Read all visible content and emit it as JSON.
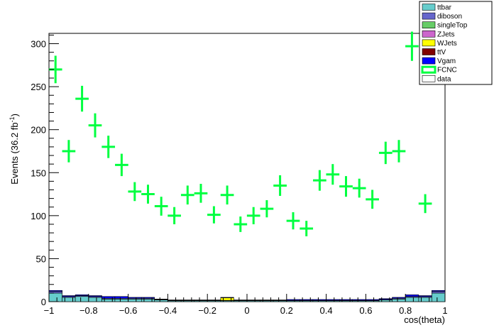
{
  "chart_data": {
    "type": "bar",
    "xlabel": "cos(theta)",
    "ylabel": "Events (36.2 fb",
    "ylabel_sup": "-1",
    "ylabel_end": ")",
    "xlim": [
      -1,
      1
    ],
    "ylim": [
      0,
      312
    ],
    "grid": false,
    "legend_position": "top-right",
    "xticks": [
      {
        "value": -1,
        "label": "−1"
      },
      {
        "value": -0.8,
        "label": "−0.8"
      },
      {
        "value": -0.6,
        "label": "−0.6"
      },
      {
        "value": -0.4,
        "label": "−0.4"
      },
      {
        "value": -0.2,
        "label": "−0.2"
      },
      {
        "value": 0,
        "label": "0"
      },
      {
        "value": 0.2,
        "label": "0.2"
      },
      {
        "value": 0.4,
        "label": "0.4"
      },
      {
        "value": 0.6,
        "label": "0.6"
      },
      {
        "value": 0.8,
        "label": "0.8"
      },
      {
        "value": 1,
        "label": "1"
      }
    ],
    "yticks": [
      {
        "value": 0,
        "label": "0"
      },
      {
        "value": 50,
        "label": "50"
      },
      {
        "value": 100,
        "label": "100"
      },
      {
        "value": 150,
        "label": "150"
      },
      {
        "value": 200,
        "label": "200"
      },
      {
        "value": 250,
        "label": "250"
      },
      {
        "value": 300,
        "label": "300"
      }
    ],
    "legend": [
      {
        "name": "ttbar",
        "color": "#66cccc",
        "style": "fill"
      },
      {
        "name": "diboson",
        "color": "#6666cc",
        "style": "fill"
      },
      {
        "name": "singleTop",
        "color": "#66cc66",
        "style": "fill"
      },
      {
        "name": "ZJets",
        "color": "#cc66cc",
        "style": "fill"
      },
      {
        "name": "WJets",
        "color": "#ffff00",
        "style": "fill"
      },
      {
        "name": "ttV",
        "color": "#800000",
        "style": "fill"
      },
      {
        "name": "Vgam",
        "color": "#0000ff",
        "style": "fill"
      },
      {
        "name": "FCNC",
        "color": "#00ff40",
        "style": "outline"
      },
      {
        "name": "data",
        "color": "#ffffff",
        "style": "fill"
      }
    ],
    "bin_edges": [
      -1,
      -0.933,
      -0.867,
      -0.8,
      -0.733,
      -0.667,
      -0.6,
      -0.533,
      -0.467,
      -0.4,
      -0.333,
      -0.267,
      -0.2,
      -0.133,
      -0.067,
      0,
      0.067,
      0.133,
      0.2,
      0.267,
      0.333,
      0.4,
      0.467,
      0.533,
      0.6,
      0.667,
      0.733,
      0.8,
      0.867,
      0.933,
      1
    ],
    "series": [
      {
        "name": "ttbar",
        "values": [
          10,
          5,
          6,
          5,
          3,
          3,
          3,
          3,
          2,
          1,
          1,
          1,
          1,
          1,
          1,
          1,
          1,
          1,
          1,
          1,
          1,
          1,
          1,
          1,
          1,
          2,
          3,
          5,
          5,
          10
        ]
      },
      {
        "name": "diboson",
        "values": [
          2,
          1,
          1,
          1,
          1,
          1,
          1,
          1,
          0.5,
          0.5,
          0.5,
          0.5,
          0.5,
          0.5,
          0.5,
          0.5,
          0.5,
          0.5,
          0.5,
          0.5,
          0.5,
          0.5,
          0.5,
          0.5,
          0.5,
          0.5,
          1,
          1,
          1,
          2
        ]
      },
      {
        "name": "WJets",
        "values": [
          0,
          0,
          0,
          0,
          0,
          0,
          0,
          0,
          0,
          0,
          0,
          0,
          0,
          3,
          0,
          0,
          0,
          0,
          0,
          0,
          0,
          0,
          0,
          0,
          0,
          0,
          0,
          0,
          0,
          0
        ]
      },
      {
        "name": "Vgam",
        "values": [
          1,
          1,
          1,
          1,
          2,
          2,
          1,
          1,
          0.5,
          0.5,
          0.5,
          0.5,
          0.5,
          0.5,
          0.5,
          0.5,
          0.5,
          0.5,
          1,
          1,
          1,
          1,
          1,
          1,
          1,
          1,
          1,
          2,
          1,
          1
        ]
      },
      {
        "name": "FCNC",
        "x": [
          -0.967,
          -0.9,
          -0.833,
          -0.767,
          -0.7,
          -0.633,
          -0.567,
          -0.5,
          -0.433,
          -0.367,
          -0.3,
          -0.233,
          -0.167,
          -0.1,
          -0.033,
          0.033,
          0.1,
          0.167,
          0.233,
          0.3,
          0.367,
          0.433,
          0.5,
          0.567,
          0.633,
          0.7,
          0.767,
          0.833,
          0.9
        ],
        "values": [
          270,
          175,
          236,
          205,
          180,
          159,
          128,
          125,
          111,
          100,
          124,
          126,
          101,
          124,
          90,
          100,
          108,
          135,
          94,
          85,
          141,
          148,
          134,
          132,
          119,
          173,
          175,
          297,
          114
        ],
        "errors": [
          16,
          13,
          15,
          14,
          13,
          13,
          11,
          11,
          11,
          10,
          11,
          11,
          10,
          11,
          9,
          10,
          10,
          12,
          10,
          9,
          12,
          12,
          12,
          11,
          11,
          13,
          13,
          17,
          11
        ]
      }
    ]
  }
}
